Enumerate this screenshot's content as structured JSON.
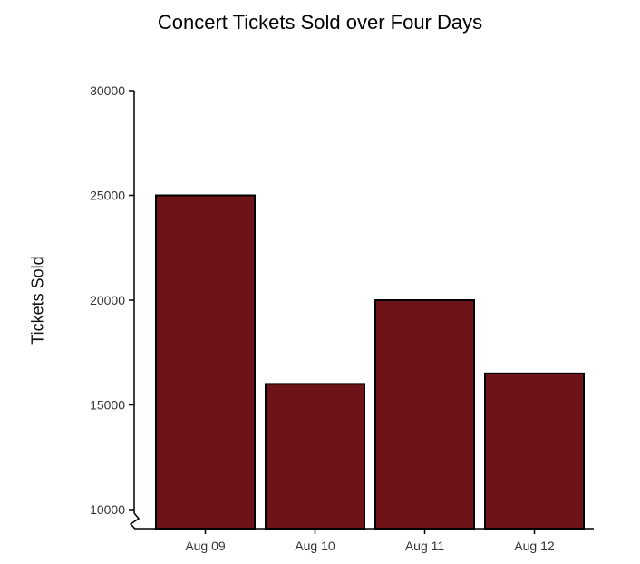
{
  "chart_data": {
    "type": "bar",
    "title": "Concert Tickets Sold over Four Days",
    "xlabel": "",
    "ylabel": "Tickets Sold",
    "categories": [
      "Aug 09",
      "Aug 10",
      "Aug 11",
      "Aug 12"
    ],
    "values": [
      25000,
      16000,
      20000,
      16500
    ],
    "ylim": [
      10000,
      30000
    ],
    "yticks": [
      10000,
      15000,
      20000,
      25000,
      30000
    ],
    "axis_break": true,
    "grid": false,
    "legend": "none",
    "colors": {
      "bar_fill": "#6e1419",
      "bar_stroke": "#000000",
      "axis": "#000000"
    }
  }
}
